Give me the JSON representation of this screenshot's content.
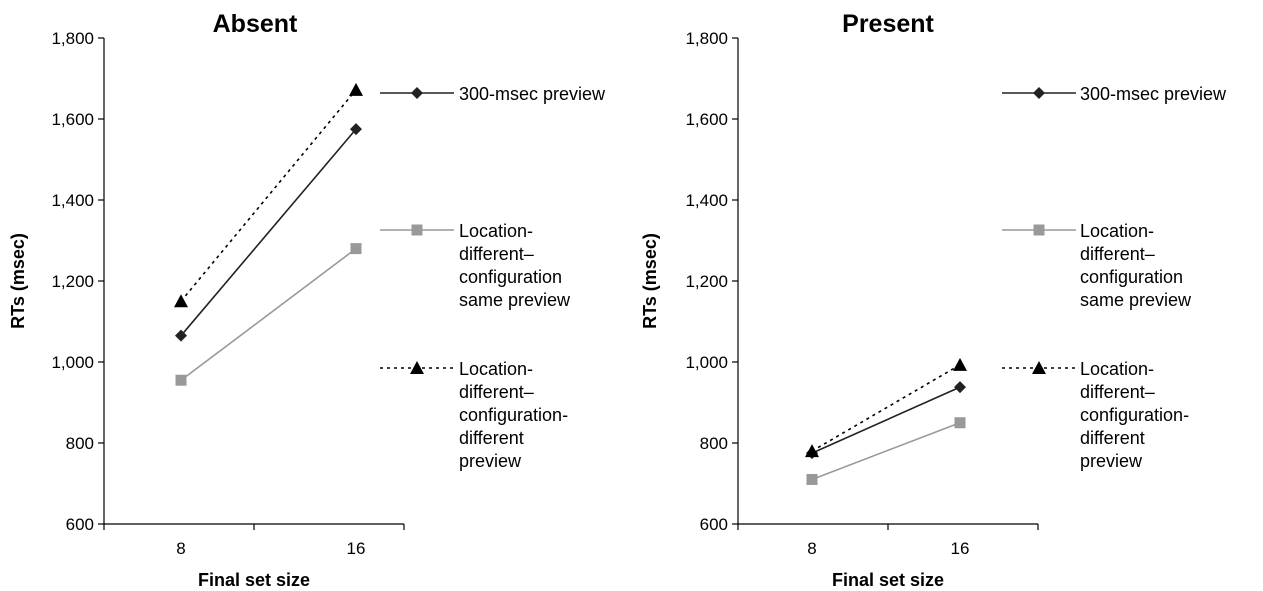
{
  "chart_data": [
    {
      "type": "line",
      "title": "Absent",
      "xlabel": "Final set size",
      "ylabel": "RTs (msec)",
      "categories": [
        "8",
        "16"
      ],
      "ylim": [
        600,
        1800
      ],
      "yticks": [
        "600",
        "800",
        "1,000",
        "1,200",
        "1,400",
        "1,600",
        "1,800"
      ],
      "grid": false,
      "legend_position": "right",
      "series": [
        {
          "name": "300-msec preview",
          "values": [
            1065,
            1575
          ],
          "color": "#222222",
          "marker": "diamond",
          "dash": "solid",
          "legend_lines": [
            "300-msec preview"
          ]
        },
        {
          "name": "Location-different–configuration same preview",
          "values": [
            955,
            1280
          ],
          "color": "#999999",
          "marker": "square",
          "dash": "solid",
          "legend_lines": [
            "Location-",
            "different–",
            "configuration",
            "same preview"
          ]
        },
        {
          "name": "Location-different–configuration-different preview",
          "values": [
            1150,
            1672
          ],
          "color": "#000000",
          "marker": "triangle",
          "dash": "dotted",
          "legend_lines": [
            "Location-",
            "different–",
            "configuration-",
            "different",
            "preview"
          ]
        }
      ]
    },
    {
      "type": "line",
      "title": "Present",
      "xlabel": "Final set size",
      "ylabel": "RTs (msec)",
      "categories": [
        "8",
        "16"
      ],
      "ylim": [
        600,
        1800
      ],
      "yticks": [
        "600",
        "800",
        "1,000",
        "1,200",
        "1,400",
        "1,600",
        "1,800"
      ],
      "grid": false,
      "legend_position": "right",
      "series": [
        {
          "name": "300-msec preview",
          "values": [
            775,
            938
          ],
          "color": "#222222",
          "marker": "diamond",
          "dash": "solid",
          "legend_lines": [
            "300-msec preview"
          ]
        },
        {
          "name": "Location-different–configuration same preview",
          "values": [
            710,
            850
          ],
          "color": "#999999",
          "marker": "square",
          "dash": "solid",
          "legend_lines": [
            "Location-",
            "different–",
            "configuration",
            "same preview"
          ]
        },
        {
          "name": "Location-different–configuration-different preview",
          "values": [
            780,
            993
          ],
          "color": "#000000",
          "marker": "triangle",
          "dash": "dotted",
          "legend_lines": [
            "Location-",
            "different–",
            "configuration-",
            "different",
            "preview"
          ]
        }
      ]
    }
  ]
}
